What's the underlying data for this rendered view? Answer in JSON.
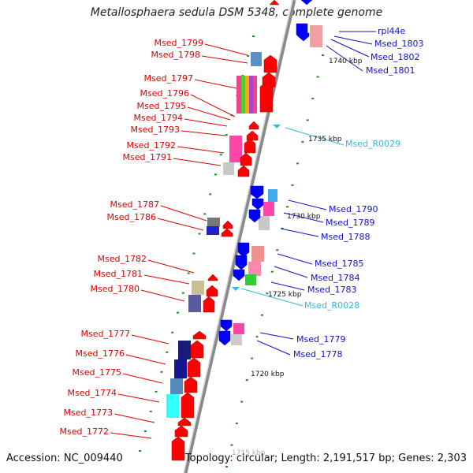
{
  "title": "Metallosphaera sedula DSM 5348, complete genome",
  "accession": "Accession: NC_009440",
  "topology": "Topology: circular; Length: 2,191,517 bp; Genes: 2,303",
  "colors": {
    "left_label": "#e00000",
    "right_label": "#1010cc",
    "rna_label": "#33bbdd",
    "backbone": "#8a8a8a",
    "forward_arrow": "#ff0000",
    "reverse_arrow": "#0000ff",
    "tick": "#228B22"
  },
  "ticks": [
    {
      "label": "1740 kbp"
    },
    {
      "label": "1735 kbp"
    },
    {
      "label": "1730 kbp"
    },
    {
      "label": "1725 kbp"
    },
    {
      "label": "1720 kbp"
    },
    {
      "label": "1715 kbp"
    }
  ],
  "left_labels": [
    "Msed_1799",
    "Msed_1798",
    "Msed_1797",
    "Msed_1796",
    "Msed_1795",
    "Msed_1794",
    "Msed_1793",
    "Msed_1792",
    "Msed_1791",
    "Msed_1787",
    "Msed_1786",
    "Msed_1782",
    "Msed_1781",
    "Msed_1780",
    "Msed_1777",
    "Msed_1776",
    "Msed_1775",
    "Msed_1774",
    "Msed_1773",
    "Msed_1772"
  ],
  "right_labels": [
    "rpl44e",
    "Msed_1803",
    "Msed_1802",
    "Msed_1801",
    "Msed_1790",
    "Msed_1789",
    "Msed_1788",
    "Msed_1785",
    "Msed_1784",
    "Msed_1783",
    "Msed_1779",
    "Msed_1778"
  ],
  "rna_labels": [
    "Msed_R0029",
    "Msed_R0028"
  ]
}
